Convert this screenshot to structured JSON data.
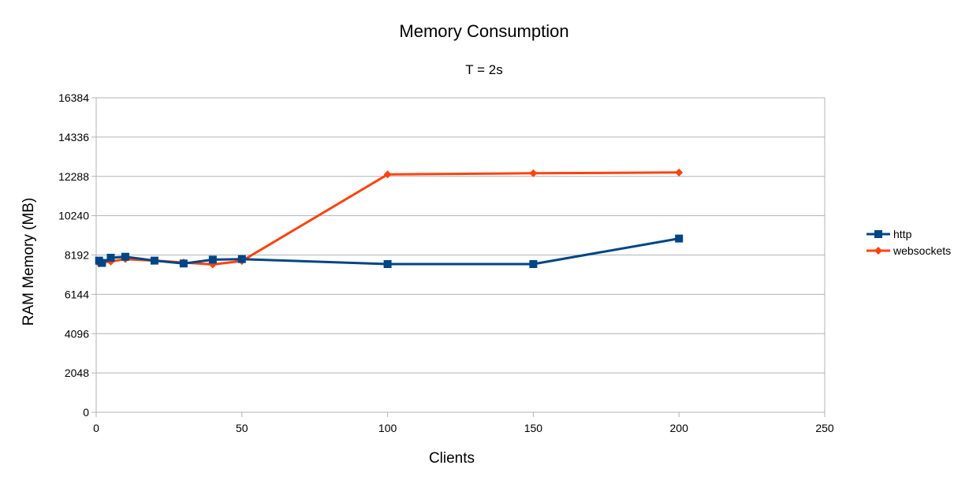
{
  "chart_data": {
    "type": "scatter",
    "title": "Memory Consumption",
    "subtitle": "T = 2s",
    "xlabel": "Clients",
    "ylabel": "RAM Memory (MB)",
    "xlim": [
      0,
      250
    ],
    "ylim": [
      0,
      16384
    ],
    "xticks": [
      0,
      50,
      100,
      150,
      200,
      250
    ],
    "yticks": [
      0,
      2048,
      4096,
      6144,
      8192,
      10240,
      12288,
      14336,
      16384
    ],
    "grid": "horizontal",
    "legend_position": "right",
    "series": [
      {
        "name": "http",
        "color": "#004586",
        "marker": "square",
        "points": [
          [
            1,
            7900
          ],
          [
            2,
            7780
          ],
          [
            5,
            8050
          ],
          [
            10,
            8100
          ],
          [
            20,
            7900
          ],
          [
            30,
            7750
          ],
          [
            40,
            7950
          ],
          [
            50,
            7980
          ],
          [
            100,
            7720
          ],
          [
            150,
            7720
          ],
          [
            200,
            9050
          ]
        ]
      },
      {
        "name": "websockets",
        "color": "#ff420e",
        "marker": "diamond",
        "points": [
          [
            1,
            7750
          ],
          [
            2,
            7800
          ],
          [
            5,
            7850
          ],
          [
            10,
            7980
          ],
          [
            20,
            7900
          ],
          [
            30,
            7800
          ],
          [
            40,
            7700
          ],
          [
            50,
            7880
          ],
          [
            100,
            12390
          ],
          [
            150,
            12450
          ],
          [
            200,
            12490
          ]
        ]
      }
    ]
  }
}
